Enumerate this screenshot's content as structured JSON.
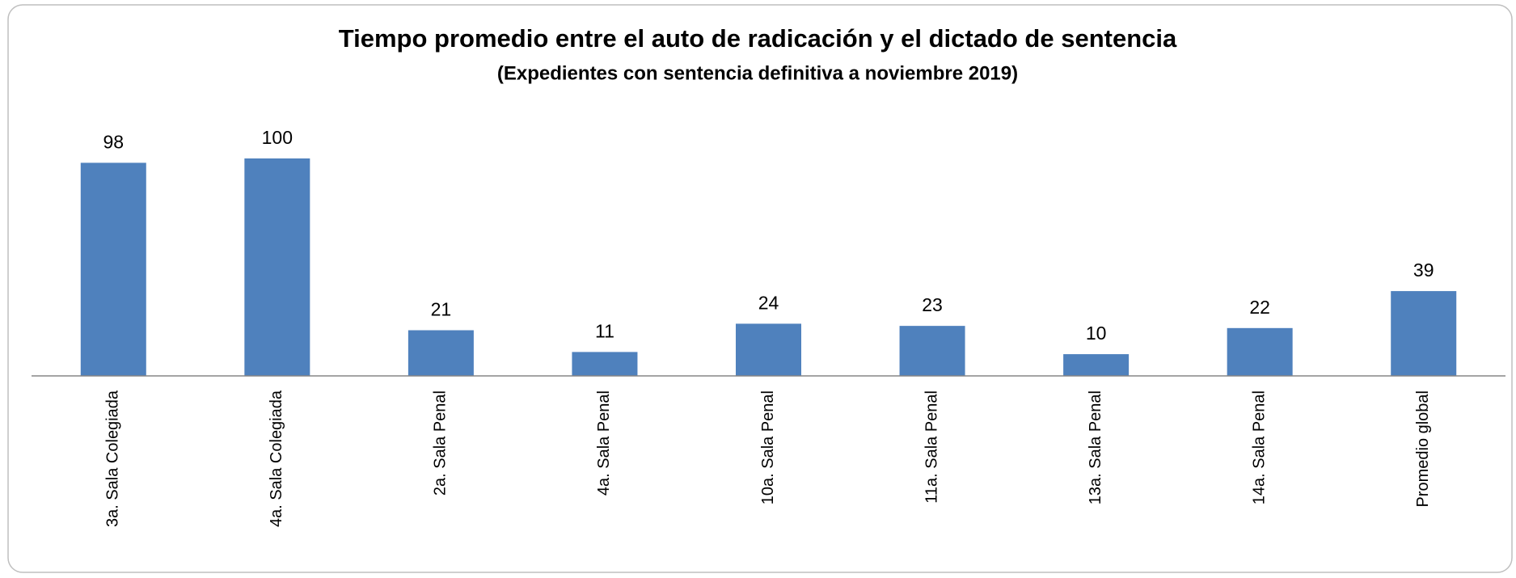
{
  "chart_data": {
    "type": "bar",
    "title": "Tiempo promedio entre el auto de radicación y el dictado de sentencia",
    "subtitle": "(Expedientes con sentencia definitiva  a noviembre 2019)",
    "categories": [
      "3a. Sala Colegiada",
      "4a. Sala Colegiada",
      "2a. Sala Penal",
      "4a. Sala Penal",
      "10a. Sala Penal",
      "11a. Sala Penal",
      "13a. Sala Penal",
      "14a. Sala Penal",
      "Promedio global"
    ],
    "values": [
      98,
      100,
      21,
      11,
      24,
      23,
      10,
      22,
      39
    ],
    "color": "#4f81bd",
    "ylim": [
      0,
      100
    ]
  }
}
